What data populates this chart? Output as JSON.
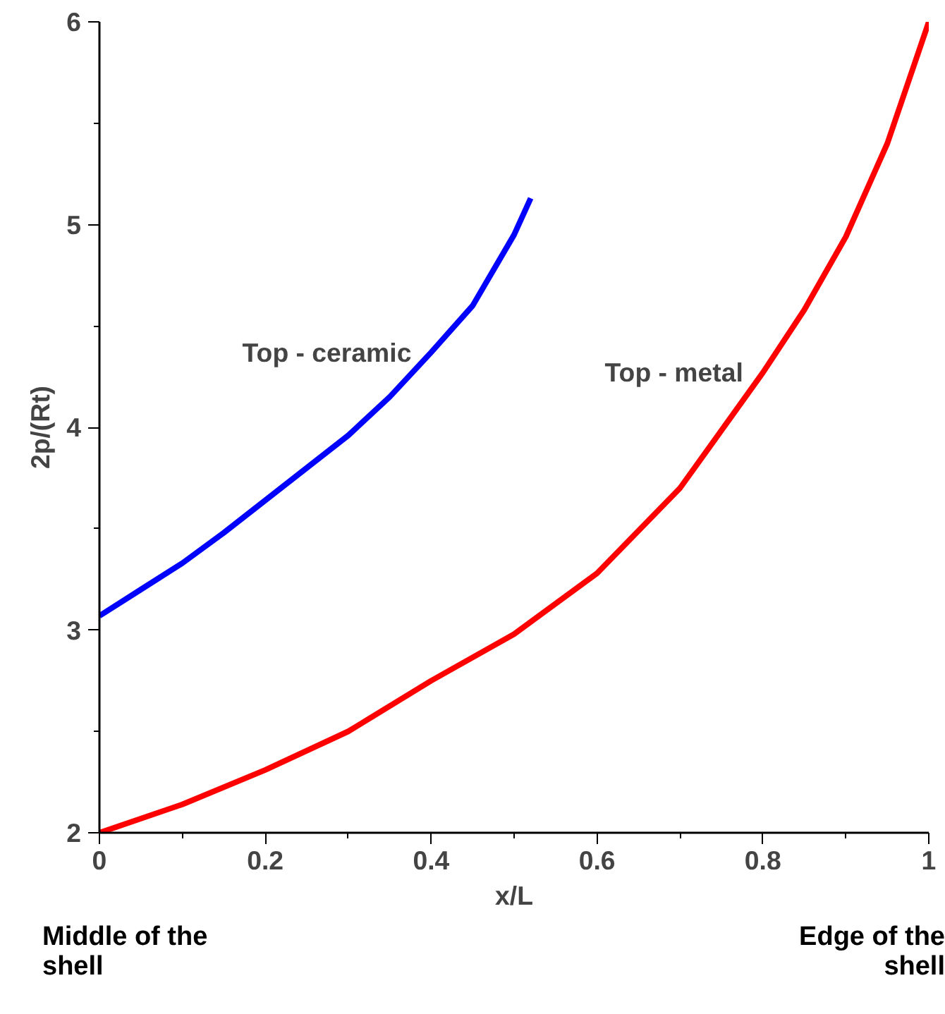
{
  "chart_data": {
    "type": "line",
    "xlabel": "x/L",
    "ylabel": "2p/(Rt)",
    "xlim": [
      0,
      1
    ],
    "ylim": [
      2,
      6
    ],
    "xticks": [
      0,
      0.2,
      0.4,
      0.6,
      0.8,
      1
    ],
    "yticks": [
      2,
      3,
      4,
      5,
      6
    ],
    "grid": false,
    "legend": false,
    "marker": "none",
    "line_style": "solid",
    "annotations": [
      "Middle of the shell",
      "Edge of the shell"
    ],
    "series": [
      {
        "name": "Top - ceramic",
        "color": "#0000ff",
        "x": [
          0,
          0.05,
          0.1,
          0.15,
          0.2,
          0.25,
          0.3,
          0.35,
          0.4,
          0.45,
          0.5,
          0.52
        ],
        "values": [
          3.07,
          3.2,
          3.33,
          3.48,
          3.64,
          3.8,
          3.96,
          4.15,
          4.37,
          4.6,
          4.95,
          5.13
        ]
      },
      {
        "name": "Top - metal",
        "color": "#ff0000",
        "x": [
          0,
          0.1,
          0.2,
          0.3,
          0.4,
          0.5,
          0.6,
          0.7,
          0.8,
          0.85,
          0.9,
          0.95,
          1
        ],
        "values": [
          2.0,
          2.14,
          2.31,
          2.5,
          2.75,
          2.98,
          3.28,
          3.7,
          4.27,
          4.58,
          4.94,
          5.4,
          6.0
        ]
      }
    ]
  }
}
